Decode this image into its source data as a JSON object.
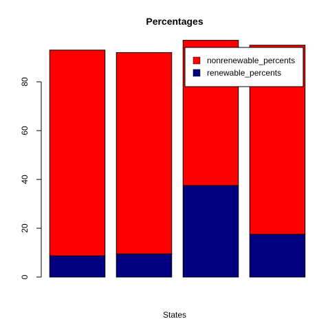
{
  "chart_data": {
    "type": "bar",
    "stacked": true,
    "title": "Percentages",
    "xlabel": "States",
    "ylabel": "",
    "ylim": [
      0,
      100
    ],
    "yticks": [
      0,
      20,
      40,
      60,
      80
    ],
    "categories": [
      "",
      "",
      "",
      ""
    ],
    "series": [
      {
        "name": "renewable_percents",
        "color": "#000080",
        "values": [
          8.7,
          9.5,
          37.5,
          17.5
        ]
      },
      {
        "name": "nonrenewable_percents",
        "color": "#ff0000",
        "values": [
          84.3,
          82.5,
          59.5,
          77.5
        ]
      }
    ],
    "legend": {
      "position": "top-right",
      "entries": [
        {
          "label": "nonrenewable_percents",
          "color": "#ff0000"
        },
        {
          "label": "renewable_percents",
          "color": "#000080"
        }
      ]
    },
    "grid": false
  }
}
